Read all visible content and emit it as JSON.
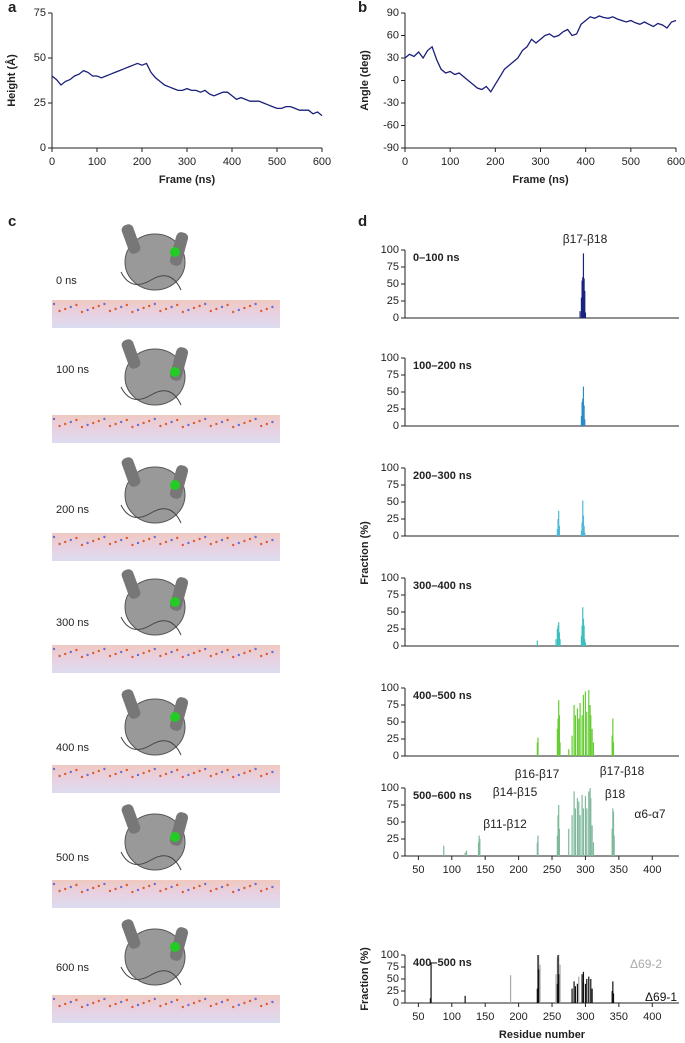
{
  "panel_labels": [
    "a",
    "b",
    "c",
    "d"
  ],
  "structures": {
    "labels": [
      "0 ns",
      "100 ns",
      "200 ns",
      "300 ns",
      "400 ns",
      "500 ns",
      "600 ns"
    ]
  },
  "chart_data": [
    {
      "type": "line",
      "xlabel": "Frame (ns)",
      "ylabel": "Height (Å)",
      "color": "#1a1f7a",
      "x": [
        0,
        10,
        20,
        30,
        40,
        50,
        60,
        70,
        80,
        90,
        100,
        110,
        120,
        130,
        140,
        150,
        160,
        170,
        180,
        190,
        200,
        210,
        220,
        230,
        240,
        250,
        260,
        270,
        280,
        290,
        300,
        310,
        320,
        330,
        340,
        350,
        360,
        370,
        380,
        390,
        400,
        410,
        420,
        430,
        440,
        450,
        460,
        470,
        480,
        490,
        500,
        510,
        520,
        530,
        540,
        550,
        560,
        570,
        580,
        590,
        600
      ],
      "values": [
        40,
        38,
        35,
        37,
        38,
        40,
        41,
        43,
        42,
        40,
        40,
        39,
        40,
        41,
        42,
        43,
        44,
        45,
        46,
        47,
        46,
        47,
        42,
        39,
        37,
        35,
        34,
        33,
        32,
        32,
        33,
        32,
        32,
        31,
        32,
        30,
        29,
        30,
        31,
        31,
        29,
        27,
        28,
        27,
        26,
        26,
        26,
        25,
        24,
        23,
        22,
        22,
        23,
        23,
        22,
        21,
        21,
        21,
        19,
        20,
        18
      ],
      "xlim": [
        0,
        600
      ],
      "ylim": [
        0,
        75
      ],
      "xticks": [
        0,
        100,
        200,
        300,
        400,
        500,
        600
      ],
      "yticks": [
        0,
        25,
        50,
        75
      ]
    },
    {
      "type": "line",
      "xlabel": "Frame (ns)",
      "ylabel": "Angle (deg)",
      "color": "#1a1f7a",
      "x": [
        0,
        10,
        20,
        30,
        40,
        50,
        60,
        70,
        80,
        90,
        100,
        110,
        120,
        130,
        140,
        150,
        160,
        170,
        180,
        190,
        200,
        210,
        220,
        230,
        240,
        250,
        260,
        270,
        280,
        290,
        300,
        310,
        320,
        330,
        340,
        350,
        360,
        370,
        380,
        390,
        400,
        410,
        420,
        430,
        440,
        450,
        460,
        470,
        480,
        490,
        500,
        510,
        520,
        530,
        540,
        550,
        560,
        570,
        580,
        590,
        600
      ],
      "values": [
        30,
        35,
        32,
        38,
        30,
        40,
        45,
        28,
        15,
        10,
        12,
        8,
        10,
        5,
        0,
        -5,
        -10,
        -12,
        -8,
        -15,
        -5,
        5,
        15,
        20,
        25,
        30,
        40,
        45,
        55,
        50,
        55,
        60,
        62,
        58,
        60,
        65,
        68,
        60,
        62,
        75,
        80,
        85,
        83,
        86,
        84,
        83,
        85,
        82,
        80,
        78,
        80,
        77,
        75,
        78,
        75,
        72,
        76,
        74,
        70,
        78,
        80
      ],
      "xlim": [
        0,
        600
      ],
      "ylim": [
        -90,
        90
      ],
      "xticks": [
        0,
        100,
        200,
        300,
        400,
        500,
        600
      ],
      "yticks": [
        -90,
        -60,
        -30,
        0,
        30,
        60,
        90
      ]
    },
    {
      "type": "bar",
      "title": "0–100 ns",
      "color": "#1a237e",
      "annotations": [
        "β17-β18"
      ],
      "x": [
        292,
        294,
        295,
        296,
        297,
        298,
        299,
        300
      ],
      "values": [
        10,
        30,
        55,
        60,
        95,
        58,
        40,
        8
      ],
      "xlim": [
        30,
        440
      ],
      "ylim": [
        0,
        100
      ],
      "yticks": [
        0,
        25,
        50,
        75,
        100
      ]
    },
    {
      "type": "bar",
      "title": "100–200 ns",
      "color": "#2b8cc4",
      "x": [
        294,
        295,
        296,
        297,
        298,
        299
      ],
      "values": [
        15,
        35,
        40,
        58,
        30,
        10
      ],
      "xlim": [
        30,
        440
      ],
      "ylim": [
        0,
        100
      ],
      "yticks": [
        0,
        25,
        50,
        75,
        100
      ]
    },
    {
      "type": "bar",
      "title": "200–300 ns",
      "color": "#4db8d8",
      "x": [
        258,
        259,
        260,
        261,
        294,
        295,
        296,
        297,
        298,
        299
      ],
      "values": [
        10,
        25,
        37,
        15,
        8,
        20,
        52,
        30,
        15,
        5
      ],
      "xlim": [
        30,
        440
      ],
      "ylim": [
        0,
        100
      ],
      "yticks": [
        0,
        25,
        50,
        75,
        100
      ]
    },
    {
      "type": "bar",
      "title": "300–400 ns",
      "color": "#3cbfbf",
      "ylabel": "Fraction (%)",
      "x": [
        228,
        256,
        258,
        259,
        260,
        261,
        262,
        294,
        295,
        296,
        297,
        298,
        299,
        300
      ],
      "values": [
        8,
        10,
        25,
        30,
        35,
        20,
        10,
        15,
        30,
        57,
        40,
        30,
        10,
        5
      ],
      "xlim": [
        30,
        440
      ],
      "ylim": [
        0,
        100
      ],
      "yticks": [
        0,
        25,
        50,
        75,
        100
      ]
    },
    {
      "type": "bar",
      "title": "400–500 ns",
      "color": "#66cc33",
      "x": [
        228,
        229,
        258,
        259,
        260,
        261,
        262,
        275,
        280,
        283,
        285,
        288,
        290,
        292,
        295,
        297,
        300,
        302,
        305,
        307,
        308,
        310,
        312,
        340,
        341,
        342
      ],
      "values": [
        20,
        27,
        40,
        55,
        82,
        60,
        20,
        10,
        30,
        75,
        60,
        70,
        55,
        78,
        60,
        90,
        95,
        65,
        97,
        75,
        60,
        40,
        20,
        30,
        55,
        20
      ],
      "xlim": [
        30,
        440
      ],
      "ylim": [
        0,
        100
      ],
      "yticks": [
        0,
        25,
        50,
        75,
        100
      ]
    },
    {
      "type": "bar",
      "title": "500–600 ns",
      "color": "#7fb89a",
      "annotations": [
        "β11-β12",
        "β14-β15",
        "β16-β17",
        "β17-β18",
        "β18",
        "α6-α7"
      ],
      "x": [
        88,
        120,
        122,
        140,
        141,
        142,
        228,
        229,
        258,
        259,
        260,
        261,
        275,
        280,
        283,
        285,
        288,
        290,
        292,
        295,
        297,
        300,
        302,
        305,
        307,
        308,
        310,
        312,
        340,
        341,
        342,
        343
      ],
      "values": [
        15,
        5,
        8,
        20,
        30,
        25,
        20,
        30,
        30,
        60,
        75,
        40,
        40,
        60,
        95,
        70,
        85,
        80,
        60,
        90,
        70,
        88,
        70,
        95,
        100,
        85,
        45,
        20,
        40,
        70,
        65,
        30
      ],
      "xlim": [
        30,
        440
      ],
      "ylim": [
        0,
        100
      ],
      "yticks": [
        0,
        25,
        50,
        75,
        100
      ],
      "xticks": [
        50,
        100,
        150,
        200,
        250,
        300,
        350,
        400
      ]
    },
    {
      "type": "bar",
      "title": "400–500 ns",
      "ylabel": "Fraction (%)",
      "xlabel": "Residue number",
      "series": [
        {
          "name": "Δ69-2",
          "color": "#aaaaaa",
          "x": [
            188,
            230,
            232,
            256,
            258,
            260,
            262,
            290,
            296,
            305
          ],
          "values": [
            58,
            100,
            80,
            60,
            95,
            100,
            80,
            55,
            45,
            50
          ]
        },
        {
          "name": "Δ69-1",
          "color": "#111111",
          "x": [
            68,
            69,
            120,
            228,
            229,
            230,
            258,
            259,
            260,
            280,
            283,
            285,
            288,
            295,
            297,
            300,
            302,
            305,
            308,
            310,
            340,
            341,
            342
          ],
          "values": [
            10,
            85,
            15,
            30,
            100,
            70,
            40,
            100,
            60,
            30,
            45,
            35,
            40,
            60,
            65,
            40,
            50,
            55,
            50,
            30,
            25,
            45,
            20
          ]
        }
      ],
      "xlim": [
        30,
        440
      ],
      "ylim": [
        0,
        100
      ],
      "yticks": [
        0,
        25,
        50,
        75,
        100
      ],
      "xticks": [
        50,
        100,
        150,
        200,
        250,
        300,
        350,
        400
      ]
    }
  ]
}
